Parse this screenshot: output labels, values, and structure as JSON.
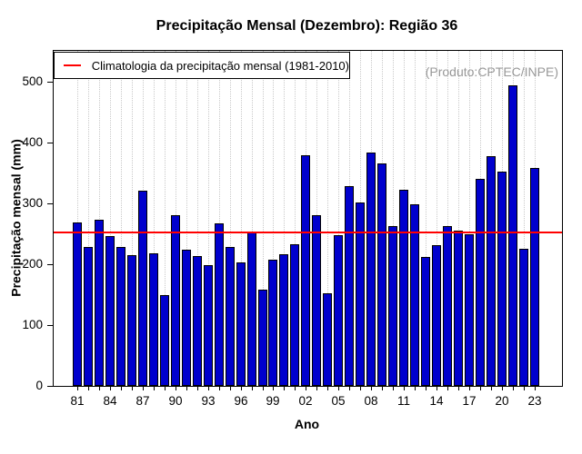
{
  "chart_data": {
    "type": "bar",
    "title": "Precipitação Mensal (Dezembro): Região 36",
    "xlabel": "Ano",
    "ylabel": "Precipitação mensal (mm)",
    "watermark": "(Produto:CPTEC/INPE)",
    "watermark_color": "#989898",
    "ylim": [
      0,
      551
    ],
    "yticks": [
      0,
      100,
      200,
      300,
      400,
      500
    ],
    "x_tick_labels": [
      "81",
      "84",
      "87",
      "90",
      "93",
      "96",
      "99",
      "02",
      "05",
      "08",
      "11",
      "14",
      "17",
      "20",
      "23"
    ],
    "label_every": 3,
    "years": [
      1981,
      1982,
      1983,
      1984,
      1985,
      1986,
      1987,
      1988,
      1989,
      1990,
      1991,
      1992,
      1993,
      1994,
      1995,
      1996,
      1997,
      1998,
      1999,
      2000,
      2001,
      2002,
      2003,
      2004,
      2005,
      2006,
      2007,
      2008,
      2009,
      2010,
      2011,
      2012,
      2013,
      2014,
      2015,
      2016,
      2017,
      2018,
      2019,
      2020,
      2021,
      2022,
      2023
    ],
    "values": [
      269,
      229,
      273,
      246,
      228,
      215,
      321,
      218,
      150,
      280,
      224,
      213,
      199,
      267,
      229,
      203,
      254,
      159,
      208,
      216,
      233,
      379,
      281,
      153,
      248,
      328,
      301,
      384,
      366,
      263,
      322,
      298,
      212,
      231,
      263,
      256,
      249,
      340,
      378,
      353,
      495,
      226,
      358
    ],
    "climatology": {
      "label": "Climatologia da precipitação mensal (1981-2010)",
      "value": 252,
      "line_color": "#ff0000"
    },
    "bar_color": "#0000cd",
    "bar_border_color": "#000000",
    "grid": {
      "vertical": "dotted",
      "color": "#c9c9c9"
    },
    "legend_position": "top-left"
  }
}
